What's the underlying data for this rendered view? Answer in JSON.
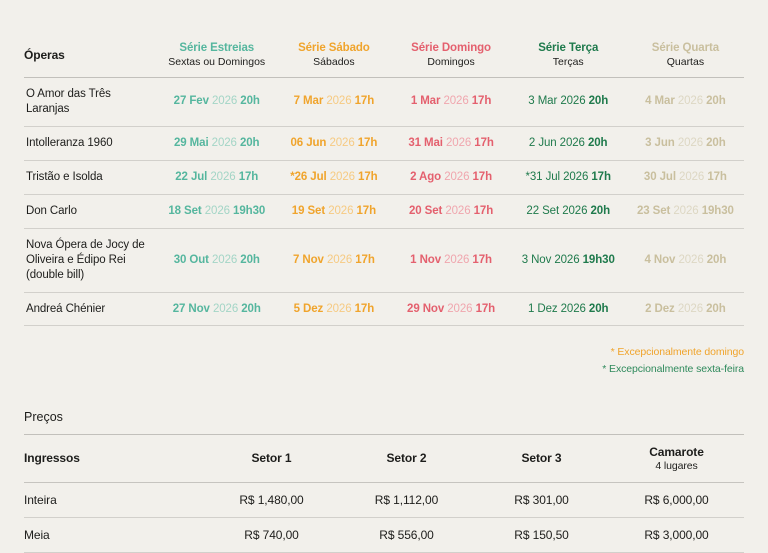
{
  "colors": {
    "background": "#f2f0eb",
    "text": "#1d1d1b",
    "serie_estreias": "#55b69e",
    "serie_sabado": "#f0a42c",
    "serie_domingo": "#e4606e",
    "serie_terca": "#1f7a4c",
    "serie_quarta": "#c9bf9e"
  },
  "schedule": {
    "operas_header": "Óperas",
    "columns": [
      {
        "title": "Série Estreias",
        "subtitle": "Sextas ou Domingos"
      },
      {
        "title": "Série Sábado",
        "subtitle": "Sábados"
      },
      {
        "title": "Série Domingo",
        "subtitle": "Domingos"
      },
      {
        "title": "Série Terça",
        "subtitle": "Terças"
      },
      {
        "title": "Série Quarta",
        "subtitle": "Quartas"
      }
    ],
    "rows": [
      {
        "opera": "O Amor das Três Laranjas",
        "cells": [
          {
            "date": "27 Fev",
            "year": "2026",
            "time": "20h"
          },
          {
            "date": "7 Mar",
            "year": "2026",
            "time": "17h"
          },
          {
            "date": "1 Mar",
            "year": "2026",
            "time": "17h"
          },
          {
            "date": "3 Mar",
            "year": "2026",
            "time": "20h"
          },
          {
            "date": "4 Mar",
            "year": "2026",
            "time": "20h"
          }
        ]
      },
      {
        "opera": "Intolleranza 1960",
        "cells": [
          {
            "date": "29 Mai",
            "year": "2026",
            "time": "20h"
          },
          {
            "date": "06 Jun",
            "year": "2026",
            "time": "17h"
          },
          {
            "date": "31 Mai",
            "year": "2026",
            "time": "17h"
          },
          {
            "date": "2 Jun",
            "year": "2026",
            "time": "20h"
          },
          {
            "date": "3 Jun",
            "year": "2026",
            "time": "20h"
          }
        ]
      },
      {
        "opera": "Tristão e Isolda",
        "cells": [
          {
            "date": "22 Jul",
            "year": "2026",
            "time": "17h"
          },
          {
            "date": "*26 Jul",
            "year": "2026",
            "time": "17h"
          },
          {
            "date": "2 Ago",
            "year": "2026",
            "time": "17h"
          },
          {
            "date": "*31 Jul",
            "year": "2026",
            "time": "17h"
          },
          {
            "date": "30 Jul",
            "year": "2026",
            "time": "17h"
          }
        ]
      },
      {
        "opera": "Don Carlo",
        "cells": [
          {
            "date": "18 Set",
            "year": "2026",
            "time": "19h30"
          },
          {
            "date": "19 Set",
            "year": "2026",
            "time": "17h"
          },
          {
            "date": "20 Set",
            "year": "2026",
            "time": "17h"
          },
          {
            "date": "22 Set",
            "year": "2026",
            "time": "20h"
          },
          {
            "date": "23 Set",
            "year": "2026",
            "time": "19h30"
          }
        ]
      },
      {
        "opera": "Nova Ópera de Jocy de Oliveira e Édipo Rei (double bill)",
        "cells": [
          {
            "date": "30 Out",
            "year": "2026",
            "time": "20h"
          },
          {
            "date": "7 Nov",
            "year": "2026",
            "time": "17h"
          },
          {
            "date": "1 Nov",
            "year": "2026",
            "time": "17h"
          },
          {
            "date": "3 Nov",
            "year": "2026",
            "time": "19h30"
          },
          {
            "date": "4 Nov",
            "year": "2026",
            "time": "20h"
          }
        ]
      },
      {
        "opera": "Andreá Chénier",
        "cells": [
          {
            "date": "27 Nov",
            "year": "2026",
            "time": "20h"
          },
          {
            "date": "5 Dez",
            "year": "2026",
            "time": "17h"
          },
          {
            "date": "29 Nov",
            "year": "2026",
            "time": "17h"
          },
          {
            "date": "1 Dez",
            "year": "2026",
            "time": "20h"
          },
          {
            "date": "2 Dez",
            "year": "2026",
            "time": "20h"
          }
        ]
      }
    ],
    "footnotes": [
      {
        "text": "* Excepcionalmente domingo"
      },
      {
        "text": "* Excepcionalmente sexta-feira"
      }
    ]
  },
  "prices": {
    "title": "Preços",
    "label_header": "Ingressos",
    "columns": [
      {
        "title": "Setor 1",
        "subtitle": ""
      },
      {
        "title": "Setor 2",
        "subtitle": ""
      },
      {
        "title": "Setor 3",
        "subtitle": ""
      },
      {
        "title": "Camarote",
        "subtitle": "4 lugares"
      }
    ],
    "rows": [
      {
        "label": "Inteira",
        "values": [
          "R$ 1,480,00",
          "R$ 1,112,00",
          "R$ 301,00",
          "R$ 6,000,00"
        ]
      },
      {
        "label": "Meia",
        "values": [
          "R$ 740,00",
          "R$ 556,00",
          "R$ 150,50",
          "R$ 3,000,00"
        ]
      }
    ]
  }
}
